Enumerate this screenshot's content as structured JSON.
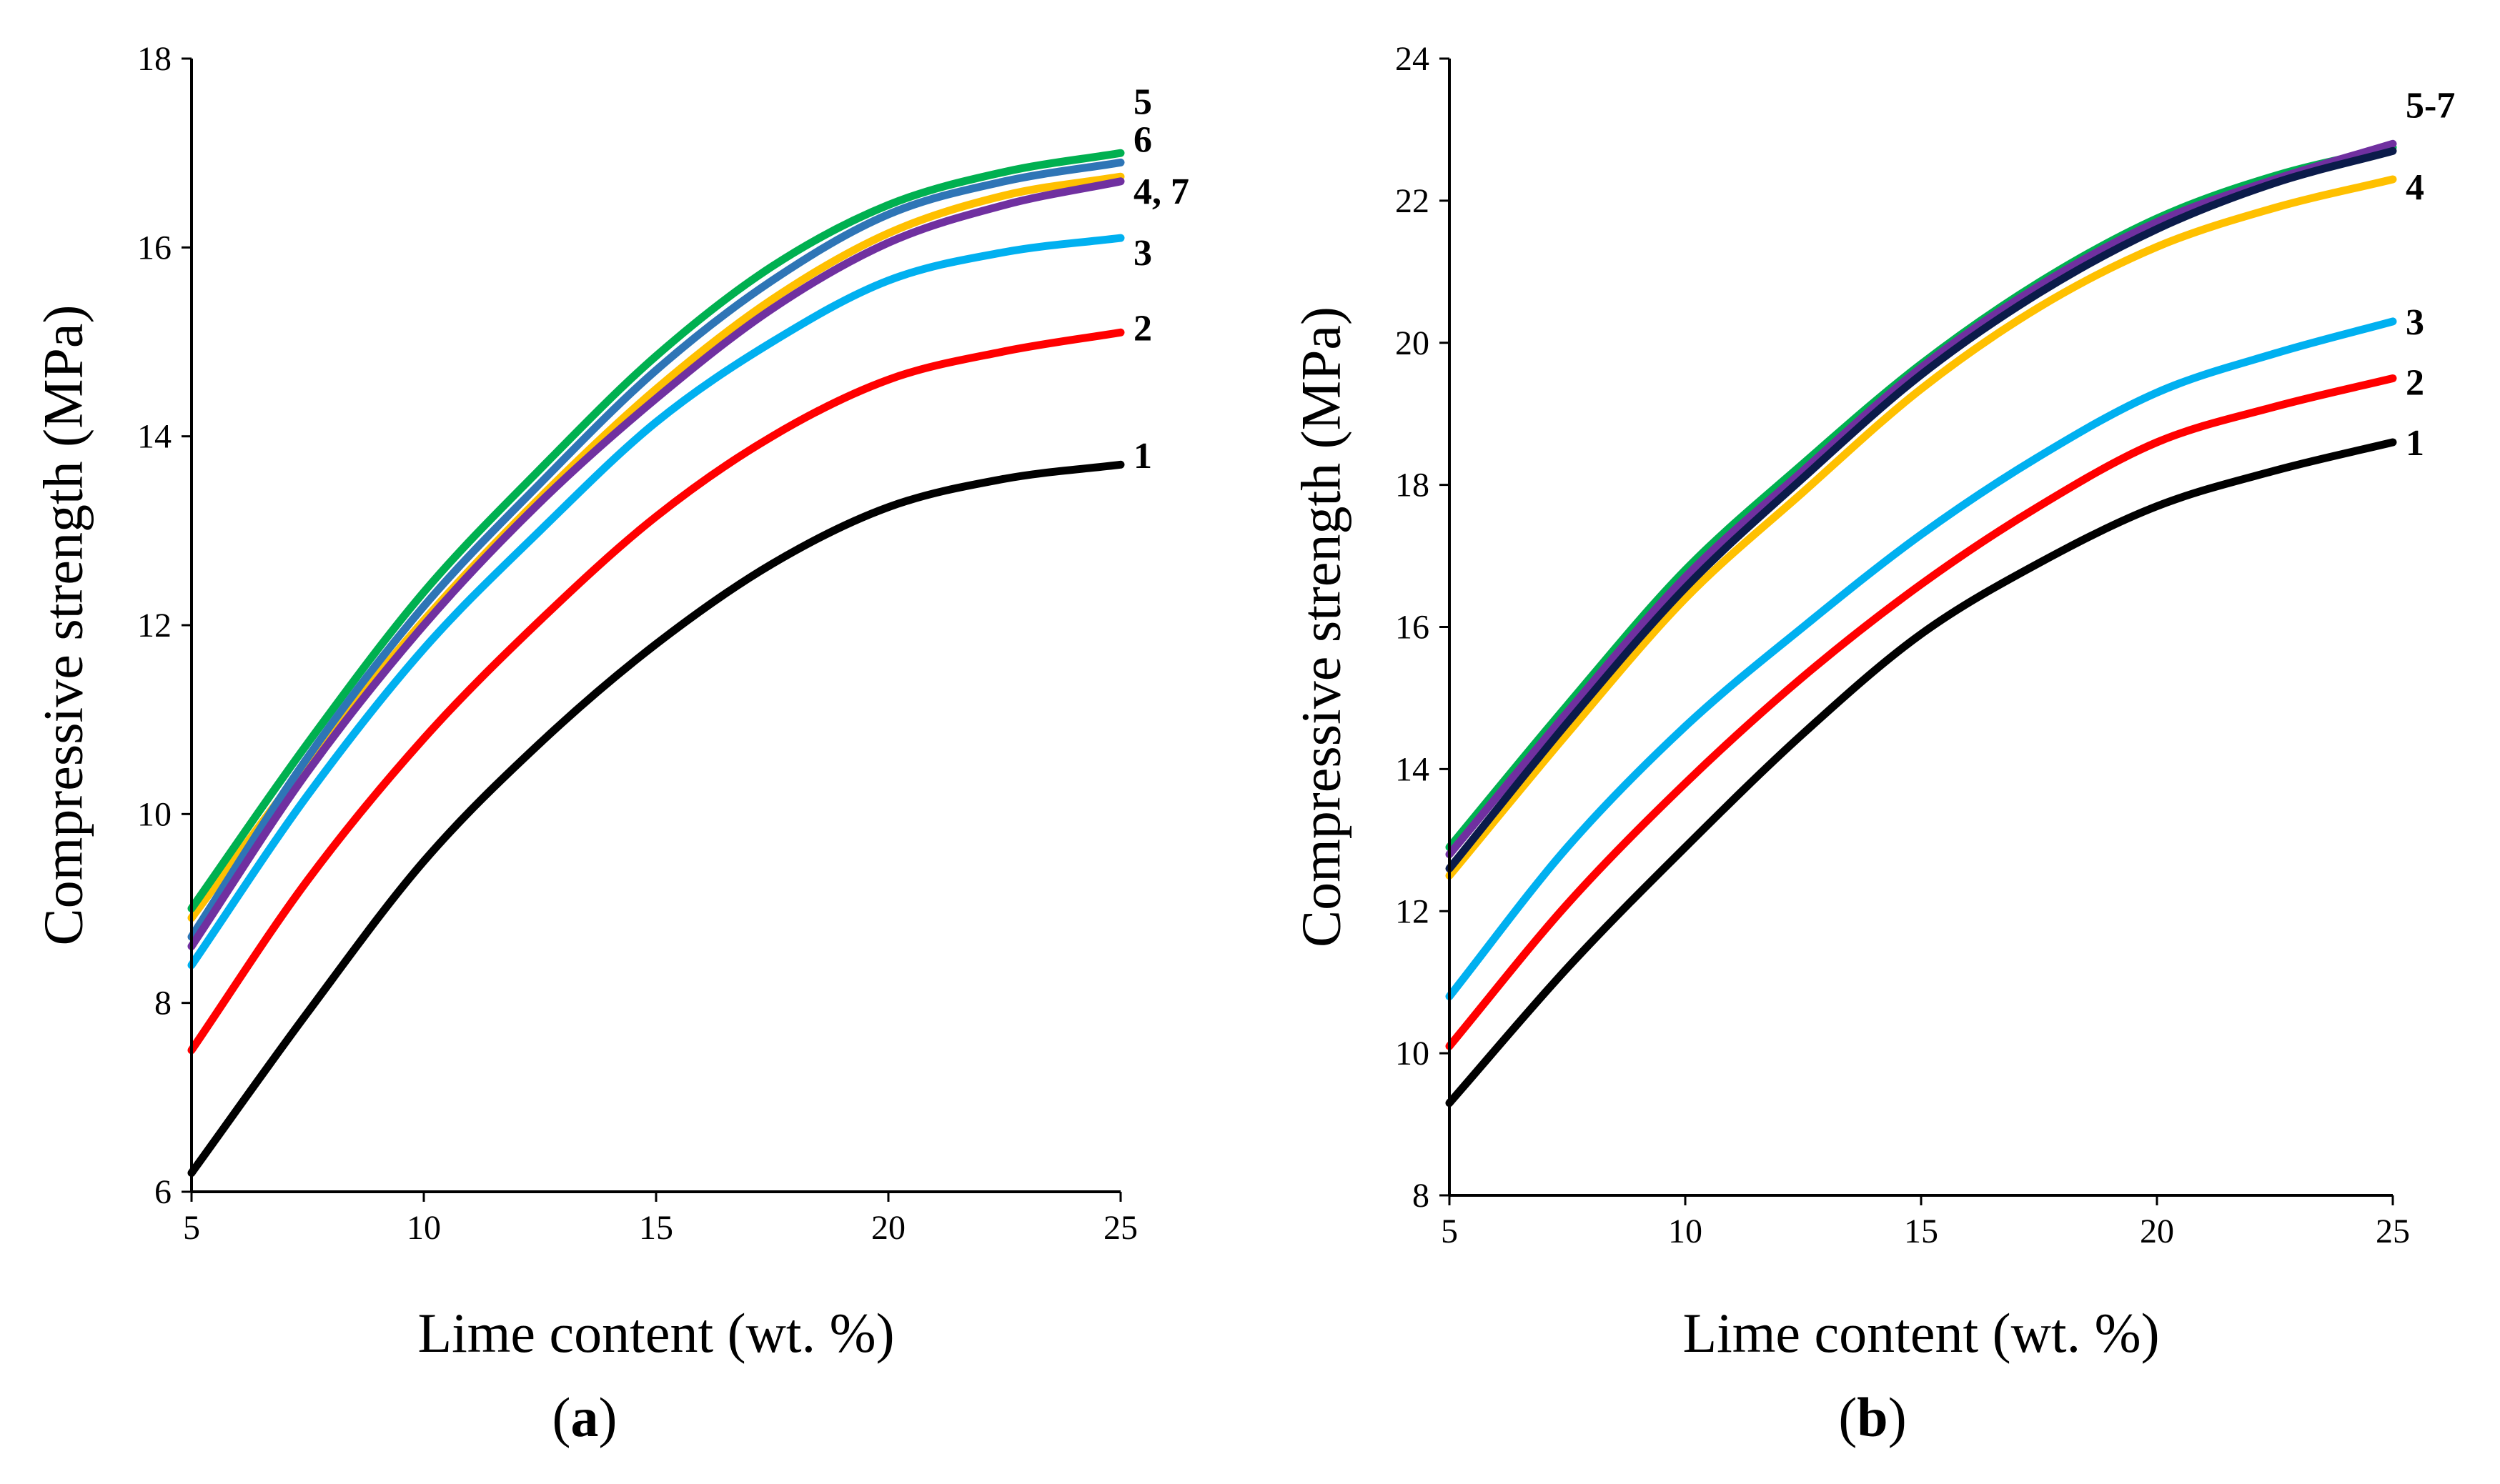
{
  "chart_data": [
    {
      "id": "a",
      "type": "line",
      "caption": "a",
      "xlabel": "Lime content (wt. %)",
      "ylabel": "Compressive strength (MPa)",
      "xlim": [
        5,
        25
      ],
      "ylim": [
        6,
        18
      ],
      "xticks": [
        5,
        10,
        15,
        20,
        25
      ],
      "yticks": [
        6,
        8,
        10,
        12,
        14,
        16,
        18
      ],
      "x": [
        5,
        7.5,
        10,
        12.5,
        15,
        17.5,
        20,
        22.5,
        25
      ],
      "series": [
        {
          "name": "1",
          "color": "#000000",
          "values": [
            6.2,
            7.9,
            9.5,
            10.75,
            11.8,
            12.65,
            13.25,
            13.55,
            13.7
          ]
        },
        {
          "name": "2",
          "color": "#ff0000",
          "values": [
            7.5,
            9.3,
            10.8,
            12.05,
            13.15,
            14.0,
            14.6,
            14.9,
            15.1
          ]
        },
        {
          "name": "3",
          "color": "#00b0f0",
          "values": [
            8.4,
            10.2,
            11.75,
            13.0,
            14.15,
            15.0,
            15.65,
            15.95,
            16.1
          ]
        },
        {
          "name": "4",
          "color": "#ffc000",
          "values": [
            8.9,
            10.55,
            12.05,
            13.35,
            14.5,
            15.45,
            16.15,
            16.55,
            16.75
          ]
        },
        {
          "name": "5",
          "color": "#00b050",
          "values": [
            9.0,
            10.75,
            12.35,
            13.65,
            14.85,
            15.8,
            16.45,
            16.8,
            17.0
          ]
        },
        {
          "name": "6",
          "color": "#2e75b6",
          "values": [
            8.7,
            10.6,
            12.2,
            13.5,
            14.7,
            15.65,
            16.35,
            16.7,
            16.9
          ]
        },
        {
          "name": "7",
          "color": "#7030a0",
          "values": [
            8.6,
            10.45,
            12.0,
            13.3,
            14.4,
            15.35,
            16.05,
            16.45,
            16.7
          ]
        }
      ],
      "end_labels": [
        {
          "text": "5",
          "y": 17.55
        },
        {
          "text": "6",
          "y": 17.15
        },
        {
          "text": "4, 7",
          "y": 16.6
        },
        {
          "text": "3",
          "y": 15.95
        },
        {
          "text": "2",
          "y": 15.15
        },
        {
          "text": "1",
          "y": 13.8
        }
      ]
    },
    {
      "id": "b",
      "type": "line",
      "caption": "b",
      "xlabel": "Lime content (wt. %)",
      "ylabel": "Compressive strength (MPa)",
      "xlim": [
        5,
        25
      ],
      "ylim": [
        8,
        24
      ],
      "xticks": [
        5,
        10,
        15,
        20,
        25
      ],
      "yticks": [
        8,
        10,
        12,
        14,
        16,
        18,
        20,
        22,
        24
      ],
      "x": [
        5,
        7.5,
        10,
        12.5,
        15,
        17.5,
        20,
        22.5,
        25
      ],
      "series": [
        {
          "name": "1",
          "color": "#000000",
          "values": [
            9.3,
            11.2,
            12.9,
            14.5,
            15.9,
            16.9,
            17.7,
            18.2,
            18.6
          ]
        },
        {
          "name": "2",
          "color": "#ff0000",
          "values": [
            10.1,
            12.1,
            13.8,
            15.3,
            16.6,
            17.7,
            18.6,
            19.1,
            19.5
          ]
        },
        {
          "name": "3",
          "color": "#00b0f0",
          "values": [
            10.8,
            12.9,
            14.6,
            16.0,
            17.3,
            18.4,
            19.3,
            19.85,
            20.3
          ]
        },
        {
          "name": "4",
          "color": "#ffc000",
          "values": [
            12.5,
            14.5,
            16.4,
            17.9,
            19.35,
            20.5,
            21.35,
            21.9,
            22.3
          ]
        },
        {
          "name": "5",
          "color": "#00b050",
          "values": [
            12.9,
            14.9,
            16.8,
            18.3,
            19.7,
            20.85,
            21.75,
            22.35,
            22.75
          ]
        },
        {
          "name": "6",
          "color": "#7030a0",
          "values": [
            12.8,
            14.8,
            16.7,
            18.2,
            19.65,
            20.8,
            21.7,
            22.3,
            22.8
          ]
        },
        {
          "name": "7",
          "color": "#0b1b4a",
          "values": [
            12.6,
            14.65,
            16.55,
            18.1,
            19.55,
            20.7,
            21.6,
            22.25,
            22.7
          ]
        }
      ],
      "end_labels": [
        {
          "text": "5-7",
          "y": 23.35
        },
        {
          "text": "4",
          "y": 22.2
        },
        {
          "text": "3",
          "y": 20.3
        },
        {
          "text": "2",
          "y": 19.45
        },
        {
          "text": "1",
          "y": 18.6
        }
      ]
    }
  ]
}
